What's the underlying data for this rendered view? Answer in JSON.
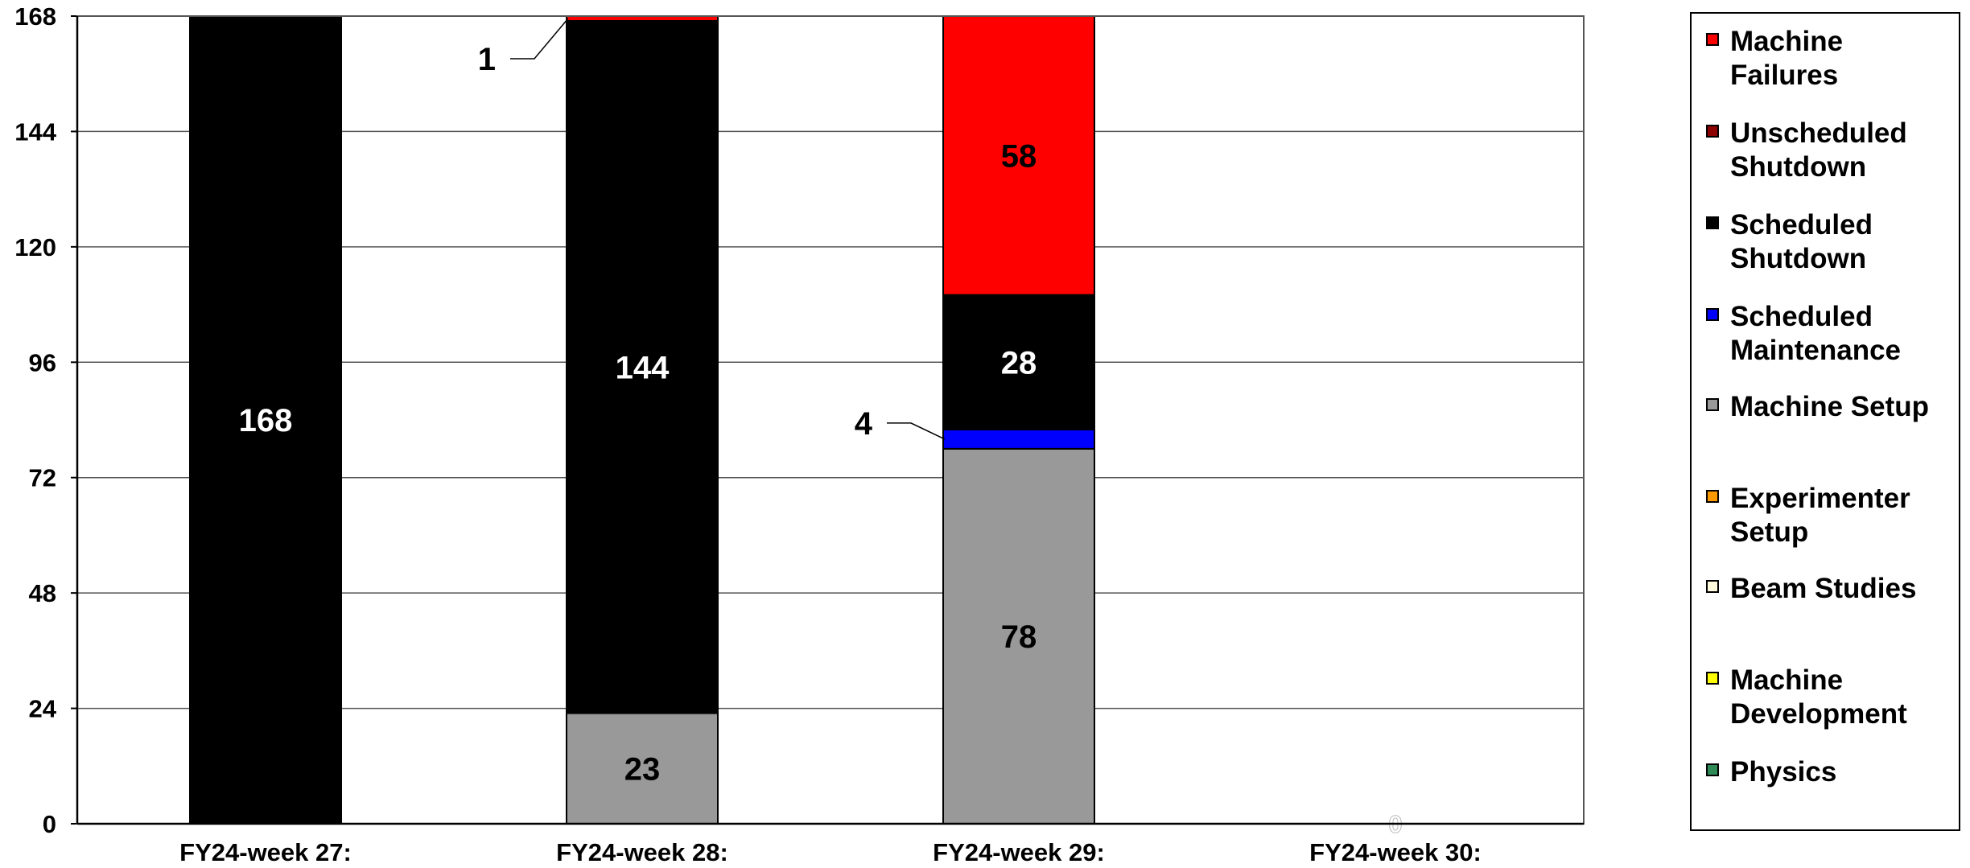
{
  "chart_data": {
    "type": "bar",
    "stacked": true,
    "categories": [
      "FY24-week 27:",
      "FY24-week 28:",
      "FY24-week 29:",
      "FY24-week 30:"
    ],
    "ylim": [
      0,
      168
    ],
    "yticks": [
      "0",
      "24",
      "48",
      "72",
      "96",
      "120",
      "144",
      "168"
    ],
    "grid": true,
    "legend_position": "right",
    "series": [
      {
        "name": "Physics",
        "color": "#2e8b57",
        "values": [
          0,
          0,
          0,
          0
        ]
      },
      {
        "name": "Machine Development",
        "color": "#ffff00",
        "values": [
          0,
          0,
          0,
          0
        ]
      },
      {
        "name": "Beam Studies",
        "color": "#fffadc",
        "values": [
          0,
          0,
          0,
          0
        ]
      },
      {
        "name": "Experimenter Setup",
        "color": "#ff9900",
        "values": [
          0,
          0,
          0,
          0
        ]
      },
      {
        "name": "Machine Setup",
        "color": "#999999",
        "values": [
          0,
          23,
          78,
          0
        ]
      },
      {
        "name": "Scheduled Maintenance",
        "color": "#0000ff",
        "values": [
          0,
          0,
          4,
          0
        ]
      },
      {
        "name": "Scheduled Shutdown",
        "color": "#000000",
        "values": [
          168,
          144,
          28,
          0
        ]
      },
      {
        "name": "Unscheduled Shutdown",
        "color": "#8b0000",
        "values": [
          0,
          0,
          0,
          0
        ]
      },
      {
        "name": "Machine Failures",
        "color": "#ff0000",
        "values": [
          0,
          1,
          58,
          0
        ]
      }
    ],
    "data_labels": [
      {
        "category": 0,
        "series": "Scheduled Shutdown",
        "text": "168",
        "color": "#ffffff"
      },
      {
        "category": 1,
        "series": "Machine Setup",
        "text": "23",
        "color": "#000000"
      },
      {
        "category": 1,
        "series": "Scheduled Shutdown",
        "text": "144",
        "color": "#ffffff"
      },
      {
        "category": 1,
        "series": "Machine Failures",
        "text": "1",
        "color": "#000000",
        "callout": true
      },
      {
        "category": 2,
        "series": "Machine Setup",
        "text": "78",
        "color": "#000000"
      },
      {
        "category": 2,
        "series": "Scheduled Maintenance",
        "text": "4",
        "color": "#000000",
        "callout": true
      },
      {
        "category": 2,
        "series": "Scheduled Shutdown",
        "text": "28",
        "color": "#ffffff"
      },
      {
        "category": 2,
        "series": "Machine Failures",
        "text": "58",
        "color": "#000000"
      },
      {
        "category": 3,
        "series": "total",
        "text": "0",
        "color": "#ffffff",
        "outlined": true
      }
    ]
  },
  "legend": {
    "items": [
      {
        "label": "Machine\nFailures",
        "color": "#ff0000"
      },
      {
        "label": "Unscheduled\nShutdown",
        "color": "#8b0000"
      },
      {
        "label": "Scheduled\nShutdown",
        "color": "#000000"
      },
      {
        "label": "Scheduled\nMaintenance",
        "color": "#0000ff"
      },
      {
        "label": "Machine  Setup",
        "color": "#999999"
      },
      {
        "label": "Experimenter\nSetup",
        "color": "#ff9900"
      },
      {
        "label": "Beam  Studies",
        "color": "#fffadc"
      },
      {
        "label": "Machine\nDevelopment",
        "color": "#ffff00"
      },
      {
        "label": "Physics",
        "color": "#2e8b57"
      }
    ]
  }
}
